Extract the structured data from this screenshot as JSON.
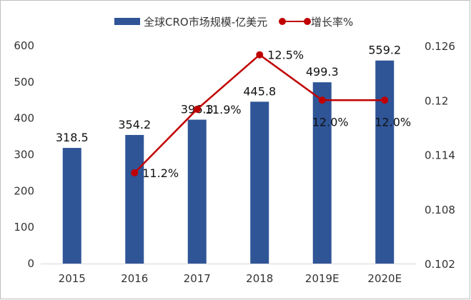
{
  "chart_data": {
    "type": "bar+line",
    "categories": [
      "2015",
      "2016",
      "2017",
      "2018",
      "2019E",
      "2020E"
    ],
    "series": [
      {
        "name": "全球CRO市场规模-亿美元",
        "type": "bar",
        "axis": "left",
        "color": "#2F5597",
        "values": [
          318.5,
          354.2,
          396.3,
          445.8,
          499.3,
          559.2
        ],
        "labels": [
          "318.5",
          "354.2",
          "396.3",
          "445.8",
          "499.3",
          "559.2"
        ]
      },
      {
        "name": "增长率%",
        "type": "line",
        "axis": "right",
        "color": "#C00000",
        "values": [
          null,
          0.112,
          0.119,
          0.125,
          0.12,
          0.12
        ],
        "labels": [
          "",
          "11.2%",
          "11.9%",
          "12.5%",
          "12.0%",
          "12.0%"
        ]
      }
    ],
    "y_left": {
      "range": [
        0,
        600
      ],
      "ticks": [
        "0",
        "100",
        "200",
        "300",
        "400",
        "500",
        "600"
      ]
    },
    "y_right": {
      "range": [
        0.102,
        0.126
      ],
      "ticks": [
        "0.102",
        "0.108",
        "0.114",
        "0.12",
        "0.126"
      ]
    },
    "grid": false,
    "legend": "top"
  }
}
